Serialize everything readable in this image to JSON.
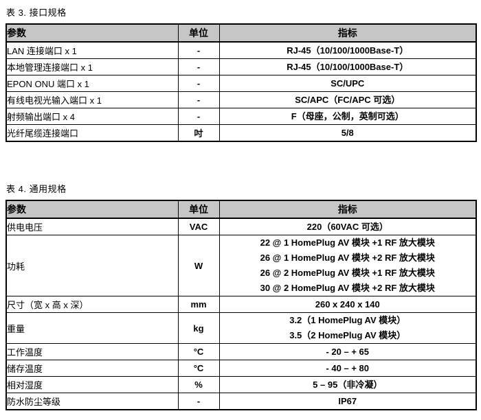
{
  "page": {
    "background": "#ffffff",
    "text_color": "#000000",
    "header_bg": "#c6c6c6",
    "border_color": "#000000"
  },
  "table3": {
    "title": "表 3. 接口规格",
    "headers": [
      "参数",
      "单位",
      "指标"
    ],
    "rows": [
      {
        "param": "LAN 连接端口 x 1",
        "unit": "-",
        "value": [
          "RJ-45（10/100/1000Base-T）"
        ]
      },
      {
        "param": "本地管理连接端口 x 1",
        "unit": "-",
        "value": [
          "RJ-45（10/100/1000Base-T）"
        ]
      },
      {
        "param": "EPON ONU 端口 x 1",
        "unit": "-",
        "value": [
          "SC/UPC"
        ]
      },
      {
        "param": "有线电视光输入端口 x 1",
        "unit": "-",
        "value": [
          "SC/APC（FC/APC 可选）"
        ]
      },
      {
        "param": "射频输出端口 x 4",
        "unit": "-",
        "value": [
          "F（母座，公制，英制可选）"
        ]
      },
      {
        "param": "光纤尾缆连接端口",
        "unit": "吋",
        "value": [
          "5/8"
        ]
      }
    ]
  },
  "table4": {
    "title": "表 4. 通用规格",
    "headers": [
      "参数",
      "单位",
      "指标"
    ],
    "rows": [
      {
        "param": "供电电压",
        "unit": "VAC",
        "value": [
          "220（60VAC 可选）"
        ]
      },
      {
        "param": "功耗",
        "unit": "W",
        "value": [
          "22 @ 1 HomePlug AV 模块  +1 RF 放大模块",
          "26 @ 1 HomePlug AV 模块  +2 RF 放大模块",
          "26 @ 2 HomePlug AV 模块  +1 RF 放大模块",
          "30 @ 2 HomePlug AV 模块  +2 RF 放大模块"
        ]
      },
      {
        "param": "尺寸（宽 x 高 x 深）",
        "unit": "mm",
        "value": [
          "260 x 240 x 140"
        ]
      },
      {
        "param": "重量",
        "unit": "kg",
        "value": [
          "3.2（1 HomePlug AV 模块）",
          "3.5（2 HomePlug AV 模块）"
        ]
      },
      {
        "param": "工作温度",
        "unit": "°C",
        "value": [
          "- 20  –  + 65"
        ]
      },
      {
        "param": "储存温度",
        "unit": "°C",
        "value": [
          "- 40  –  + 80"
        ]
      },
      {
        "param": "相对湿度",
        "unit": "%",
        "value": [
          "5  –  95（非冷凝）"
        ]
      },
      {
        "param": "防水防尘等级",
        "unit": "-",
        "value": [
          "IP67"
        ]
      }
    ]
  }
}
